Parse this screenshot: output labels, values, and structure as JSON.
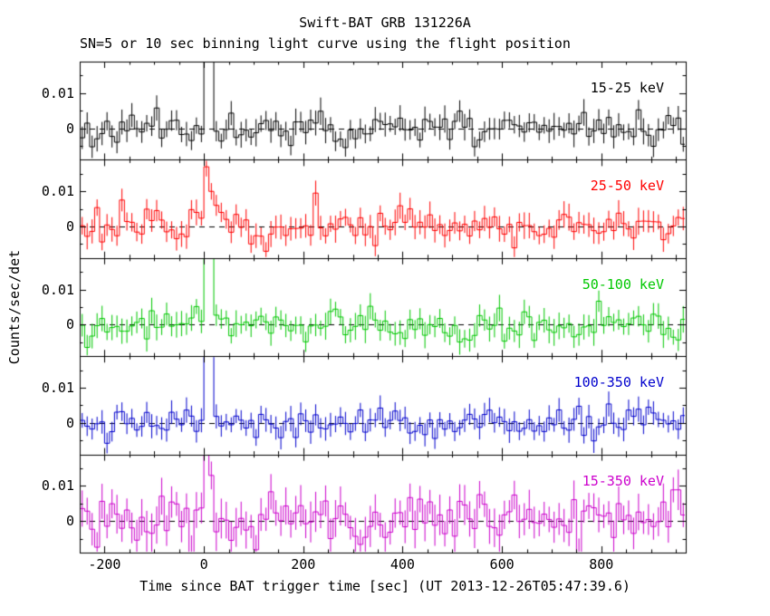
{
  "chart_data": {
    "type": "line",
    "title": "Swift-BAT GRB 131226A",
    "subtitle": "SN=5 or 10 sec binning light curve using the flight position",
    "xlabel": "Time since BAT trigger time [sec] (UT 2013-12-26T05:47:39.6)",
    "ylabel": "Counts/sec/det",
    "xlim": [
      -250,
      970
    ],
    "ylim": [
      -0.009,
      0.019
    ],
    "x_major_ticks": [
      -200,
      0,
      200,
      400,
      600,
      800
    ],
    "x_tick_labels": [
      "-200",
      "0",
      "200",
      "400",
      "600",
      "800"
    ],
    "x_minor_step": 50,
    "y_major_ticks": [
      0.01,
      0
    ],
    "y_tick_labels": [
      "0.01",
      "0"
    ],
    "y_minor_step": 0.005,
    "bin_sec": 10,
    "zero_line_style": "dashed",
    "background": "#ffffff",
    "axis_color": "#000000",
    "panels": [
      {
        "label": "15-25 keV",
        "color": "#000000",
        "noise_sigma": 0.0024,
        "err": 0.003,
        "seed": 11,
        "spikes": [
          {
            "t": 0,
            "values": [
              0.06,
              0.03
            ]
          }
        ]
      },
      {
        "label": "25-50 keV",
        "color": "#ff0000",
        "noise_sigma": 0.0024,
        "err": 0.003,
        "seed": 22,
        "spikes": [
          {
            "t": -20,
            "values": [
              0.004
            ]
          },
          {
            "t": 0,
            "values": [
              0.017,
              0.01,
              0.006,
              0.004
            ]
          },
          {
            "t": 220,
            "values": [
              0.0095
            ]
          }
        ]
      },
      {
        "label": "50-100 keV",
        "color": "#00c800",
        "noise_sigma": 0.0024,
        "err": 0.003,
        "seed": 33,
        "spikes": [
          {
            "t": 0,
            "values": [
              0.07,
              0.05
            ]
          }
        ]
      },
      {
        "label": "100-350 keV",
        "color": "#0000cd",
        "noise_sigma": 0.0022,
        "err": 0.0028,
        "seed": 44,
        "spikes": [
          {
            "t": 0,
            "values": [
              0.05,
              0.04
            ]
          }
        ]
      },
      {
        "label": "15-350 keV",
        "color": "#cc00cc",
        "noise_sigma": 0.004,
        "err": 0.0046,
        "seed": 55,
        "spikes": [
          {
            "t": 0,
            "values": [
              0.05,
              0.013
            ]
          }
        ]
      }
    ]
  }
}
